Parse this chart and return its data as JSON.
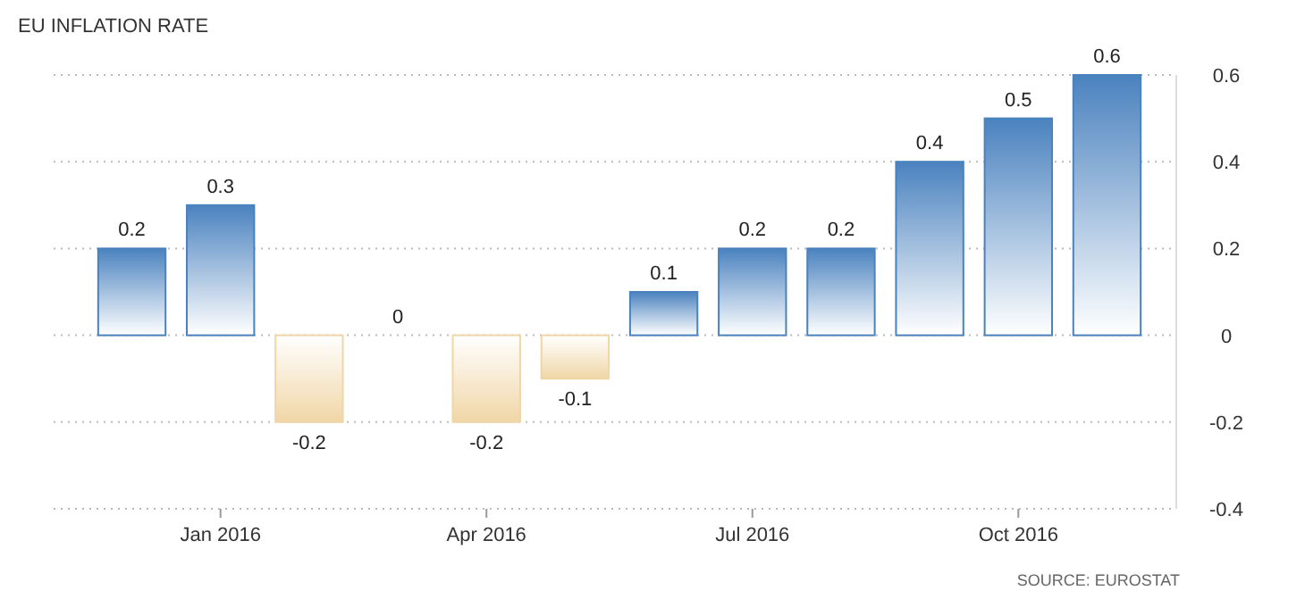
{
  "chart_data": {
    "type": "bar",
    "title": "EU INFLATION RATE",
    "categories": [
      null,
      "Jan 2016",
      null,
      null,
      "Apr 2016",
      null,
      null,
      "Jul 2016",
      null,
      null,
      "Oct 2016",
      null
    ],
    "values": [
      0.2,
      0.3,
      -0.2,
      0,
      -0.2,
      -0.1,
      0.1,
      0.2,
      0.2,
      0.4,
      0.5,
      0.6
    ],
    "colors": [
      "#4a82bf",
      "#4a82bf",
      "#f0d6a6",
      "#4a82bf",
      "#f0d6a6",
      "#f0d6a6",
      "#4a82bf",
      "#4a82bf",
      "#4a82bf",
      "#4a82bf",
      "#4a82bf",
      "#4a82bf"
    ],
    "ylim": [
      -0.4,
      0.6
    ],
    "yticks": [
      -0.4,
      -0.2,
      0,
      0.2,
      0.4,
      0.6
    ],
    "grid": "y",
    "data_labels": true,
    "annotations": [
      "SOURCE: EUROSTAT"
    ]
  }
}
